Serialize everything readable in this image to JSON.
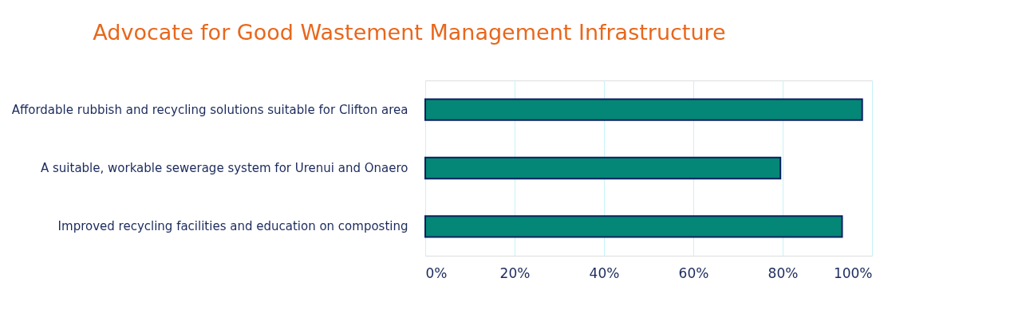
{
  "chart_data": {
    "type": "bar",
    "orientation": "horizontal",
    "title": "Advocate for Good Wastement Management Infrastructure",
    "categories": [
      "Affordable rubbish and recycling solutions suitable for Clifton area",
      "A suitable, workable sewerage system for Urenui and Onaero",
      "Improved recycling facilities and education on composting"
    ],
    "values": [
      0.978,
      0.795,
      0.933
    ],
    "color": "#048776",
    "xlim": [
      0,
      1
    ],
    "xticks": [
      {
        "value": 0,
        "label": "0%"
      },
      {
        "value": 0.2,
        "label": "20%"
      },
      {
        "value": 0.4,
        "label": "40%"
      },
      {
        "value": 0.6,
        "label": "60%"
      },
      {
        "value": 0.8,
        "label": "80%"
      },
      {
        "value": 1,
        "label": "100%"
      }
    ],
    "grid": "x"
  }
}
